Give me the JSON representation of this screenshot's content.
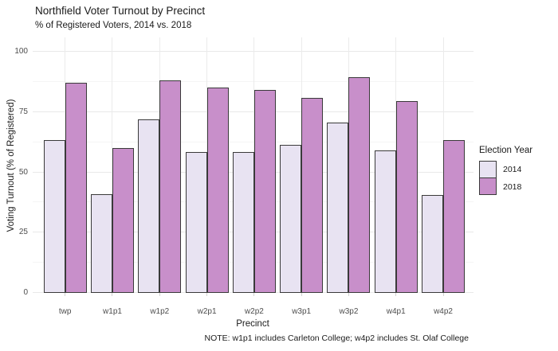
{
  "chart_data": {
    "type": "bar",
    "title": "Northfield Voter Turnout by Precinct",
    "subtitle": "% of Registered Voters, 2014 vs. 2018",
    "xlabel": "Precinct",
    "ylabel": "Voting Turnout (% of Registered)",
    "caption": "NOTE: w1p1 includes Carleton College; w4p2 includes St. Olaf College",
    "categories": [
      "twp",
      "w1p1",
      "w1p2",
      "w2p1",
      "w2p2",
      "w3p1",
      "w3p2",
      "w4p1",
      "w4p2"
    ],
    "series": [
      {
        "name": "2014",
        "color": "#e8e3f2",
        "values": [
          63.5,
          41,
          72,
          58.5,
          58.5,
          61.5,
          70.5,
          59,
          40.5
        ]
      },
      {
        "name": "2018",
        "color": "#c88fca",
        "values": [
          87,
          60,
          88,
          85,
          84,
          81,
          89.5,
          79.5,
          63.5
        ]
      }
    ],
    "ylim": [
      0,
      100
    ],
    "yticks": [
      0,
      25,
      50,
      75,
      100
    ],
    "minor_grid": true,
    "grid": "on",
    "legend_title": "Election Year",
    "legend_position": "right",
    "colors": {
      "bar_border": "#3a3a3a",
      "grid_major": "#e9e9e9",
      "grid_minor": "#f5f5f5",
      "axis_text": "#4d4d4d",
      "text": "#1a1a1a",
      "background": "#ffffff"
    }
  }
}
